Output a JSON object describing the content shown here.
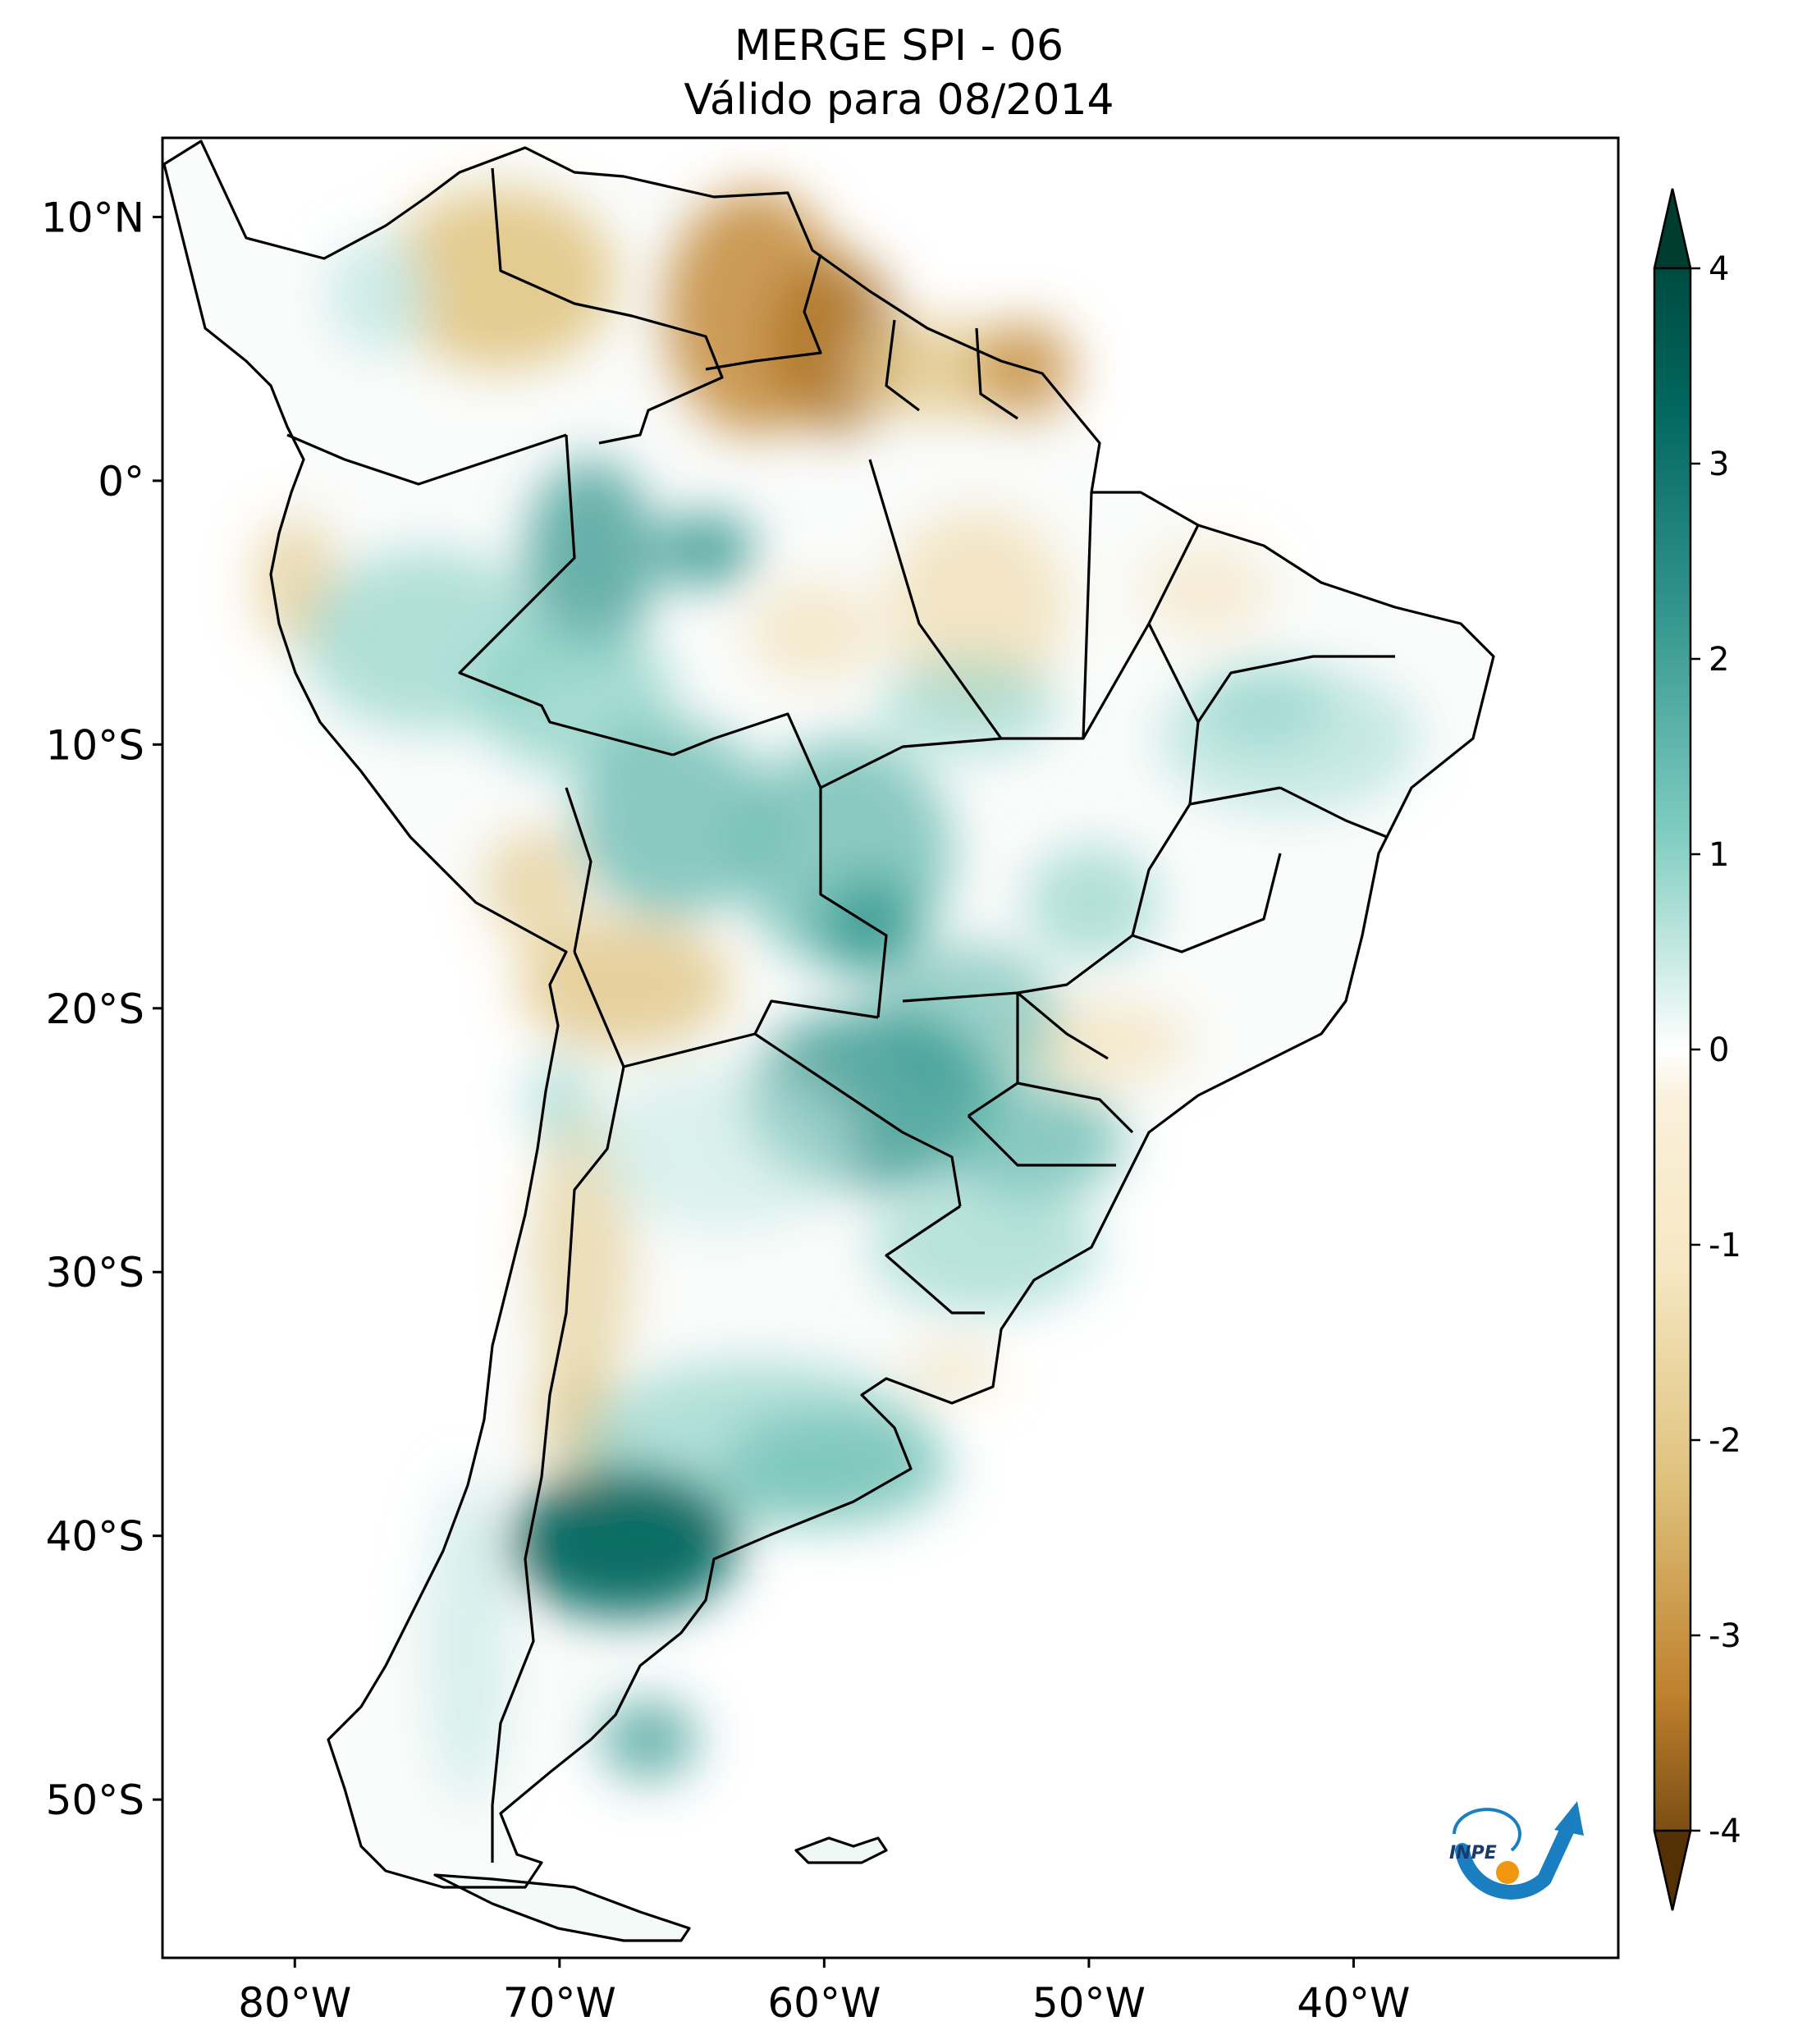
{
  "title": {
    "line1": "MERGE   SPI - 06",
    "line2": "Válido para 08/2014"
  },
  "map": {
    "lon_range": [
      -85,
      -30
    ],
    "lat_range": [
      -56,
      13
    ],
    "x_ticks": [
      {
        "lon": -80,
        "label": "80°W"
      },
      {
        "lon": -70,
        "label": "70°W"
      },
      {
        "lon": -60,
        "label": "60°W"
      },
      {
        "lon": -50,
        "label": "50°W"
      },
      {
        "lon": -40,
        "label": "40°W"
      }
    ],
    "y_ticks": [
      {
        "lat": 10,
        "label": "10°N"
      },
      {
        "lat": 0,
        "label": "0°"
      },
      {
        "lat": -10,
        "label": "10°S"
      },
      {
        "lat": -20,
        "label": "20°S"
      },
      {
        "lat": -30,
        "label": "30°S"
      },
      {
        "lat": -40,
        "label": "40°S"
      },
      {
        "lat": -50,
        "label": "50°S"
      }
    ]
  },
  "colorbar": {
    "range": [
      -4,
      4
    ],
    "ticks": [
      {
        "value": 4,
        "label": "4"
      },
      {
        "value": 3,
        "label": "3"
      },
      {
        "value": 2,
        "label": "2"
      },
      {
        "value": 1,
        "label": "1"
      },
      {
        "value": 0,
        "label": "0"
      },
      {
        "value": -1,
        "label": "-1"
      },
      {
        "value": -2,
        "label": "-2"
      },
      {
        "value": -3,
        "label": "-3"
      },
      {
        "value": -4,
        "label": "-4"
      }
    ],
    "colors": {
      "pos4": "#003c30",
      "pos3": "#01665e",
      "pos2": "#35978f",
      "pos1": "#c7eae5",
      "zero": "#ffffff",
      "neg1": "#f6e8c3",
      "neg2": "#dfc27d",
      "neg3": "#bf812d",
      "neg4": "#543005"
    }
  },
  "logo": {
    "text": "INPE",
    "colors": {
      "blue": "#1a7fc1",
      "orange": "#f0960f"
    }
  }
}
